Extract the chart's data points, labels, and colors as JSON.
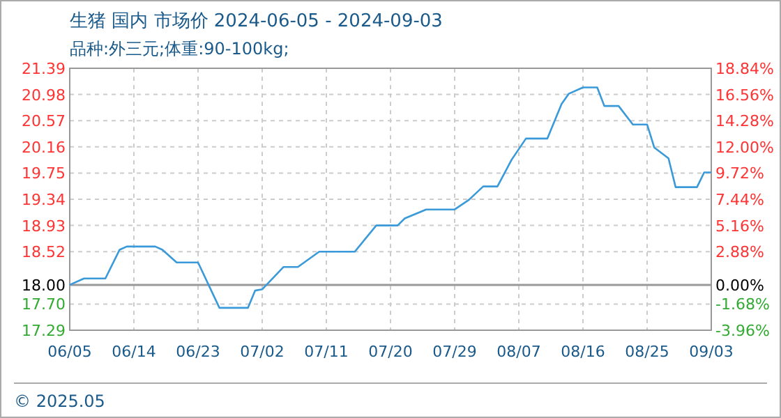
{
  "chart_data": {
    "type": "line",
    "title": "生猪 国内 市场价 2024-06-05 - 2024-09-03",
    "subtitle": "品种:外三元;体重:90-100kg;",
    "x": [
      "2024-06-05",
      "2024-06-07",
      "2024-06-10",
      "2024-06-12",
      "2024-06-13",
      "2024-06-17",
      "2024-06-18",
      "2024-06-20",
      "2024-06-23",
      "2024-06-26",
      "2024-06-30",
      "2024-07-01",
      "2024-07-02",
      "2024-07-05",
      "2024-07-07",
      "2024-07-10",
      "2024-07-15",
      "2024-07-18",
      "2024-07-21",
      "2024-07-22",
      "2024-07-25",
      "2024-07-29",
      "2024-07-31",
      "2024-08-02",
      "2024-08-04",
      "2024-08-06",
      "2024-08-08",
      "2024-08-11",
      "2024-08-13",
      "2024-08-14",
      "2024-08-16",
      "2024-08-18",
      "2024-08-19",
      "2024-08-21",
      "2024-08-23",
      "2024-08-25",
      "2024-08-26",
      "2024-08-28",
      "2024-08-29",
      "2024-09-01",
      "2024-09-02",
      "2024-09-03"
    ],
    "series": [
      {
        "color": "#3a9ad9",
        "values": [
          18.0,
          18.1,
          18.1,
          18.55,
          18.6,
          18.6,
          18.55,
          18.35,
          18.35,
          17.64,
          17.64,
          17.91,
          17.93,
          18.28,
          18.28,
          18.52,
          18.52,
          18.93,
          18.93,
          19.04,
          19.18,
          19.18,
          19.33,
          19.54,
          19.54,
          19.96,
          20.29,
          20.29,
          20.83,
          20.99,
          21.09,
          21.09,
          20.8,
          20.8,
          20.51,
          20.51,
          20.15,
          19.98,
          19.53,
          19.53,
          19.76,
          19.76
        ]
      }
    ],
    "xlim": [
      "2024-06-05",
      "2024-09-03"
    ],
    "xticks": [
      {
        "value": "2024-06-05",
        "label": "06/05"
      },
      {
        "value": "2024-06-14",
        "label": "06/14"
      },
      {
        "value": "2024-06-23",
        "label": "06/23"
      },
      {
        "value": "2024-07-02",
        "label": "07/02"
      },
      {
        "value": "2024-07-11",
        "label": "07/11"
      },
      {
        "value": "2024-07-20",
        "label": "07/20"
      },
      {
        "value": "2024-07-29",
        "label": "07/29"
      },
      {
        "value": "2024-08-07",
        "label": "08/07"
      },
      {
        "value": "2024-08-16",
        "label": "08/16"
      },
      {
        "value": "2024-08-25",
        "label": "08/25"
      },
      {
        "value": "2024-09-03",
        "label": "09/03"
      }
    ],
    "ylim": [
      17.29,
      21.39
    ],
    "yticks": [
      {
        "value": 17.29,
        "label": "17.29"
      },
      {
        "value": 17.7,
        "label": "17.70"
      },
      {
        "value": 18.0,
        "label": "18.00"
      },
      {
        "value": 18.52,
        "label": "18.52"
      },
      {
        "value": 18.93,
        "label": "18.93"
      },
      {
        "value": 19.34,
        "label": "19.34"
      },
      {
        "value": 19.75,
        "label": "19.75"
      },
      {
        "value": 20.16,
        "label": "20.16"
      },
      {
        "value": 20.57,
        "label": "20.57"
      },
      {
        "value": 20.98,
        "label": "20.98"
      },
      {
        "value": 21.39,
        "label": "21.39"
      }
    ],
    "y2lim": [
      -3.96,
      18.84
    ],
    "y2ticks": [
      {
        "value": -3.96,
        "label": "-3.96%"
      },
      {
        "value": -1.68,
        "label": "-1.68%"
      },
      {
        "value": 0,
        "label": "0.00%"
      },
      {
        "value": 2.88,
        "label": "2.88%"
      },
      {
        "value": 5.16,
        "label": "5.16%"
      },
      {
        "value": 7.44,
        "label": "7.44%"
      },
      {
        "value": 9.72,
        "label": "9.72%"
      },
      {
        "value": 12.0,
        "label": "12.00%"
      },
      {
        "value": 14.28,
        "label": "14.28%"
      },
      {
        "value": 16.56,
        "label": "16.56%"
      },
      {
        "value": 18.84,
        "label": "18.84%"
      }
    ],
    "ref_lines": [
      {
        "axis": "y",
        "value": 18.0,
        "color": "#999999"
      }
    ],
    "grid": true,
    "line_style": "solid",
    "marker": "none",
    "annotations": [
      "© 2025.05"
    ]
  }
}
